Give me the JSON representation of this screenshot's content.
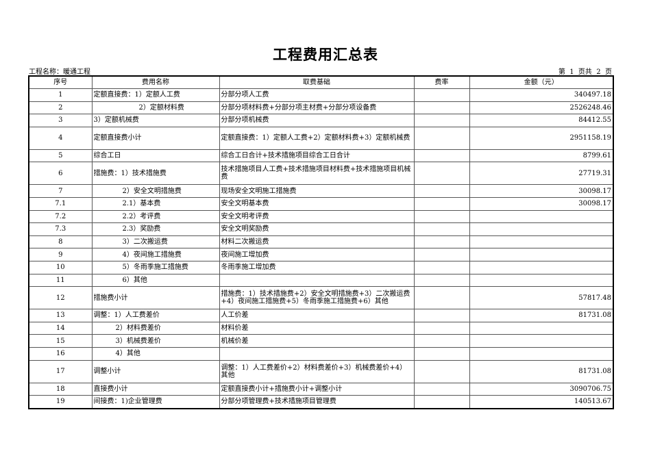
{
  "title": "工程费用汇总表",
  "project_label": "工程名称：暖通工程",
  "page_info": "第  1  页共  2  页",
  "headers": [
    "序号",
    "费用名称",
    "取费基础",
    "费率",
    "金额（元）"
  ],
  "rows": [
    {
      "no": "1",
      "name": "定额直接费：1）定额人工费",
      "basis": "分部分项人工费",
      "rate": "",
      "amount": "340497.18"
    },
    {
      "no": "2",
      "name": "2）定额材料费",
      "basis": "分部分项材料费+分部分项主材费+分部分项设备费",
      "rate": "",
      "amount": "2526248.46"
    },
    {
      "no": "3",
      "name": "3）定额机械费",
      "basis": "分部分项机械费",
      "rate": "",
      "amount": "84412.55"
    },
    {
      "no": "4",
      "name": "定额直接费小计",
      "basis": "定额直接费：1）定额人工费+2）定额材料费+3）定额机械费",
      "rate": "",
      "amount": "2951158.19"
    },
    {
      "no": "5",
      "name": "综合工日",
      "basis": "综合工日合计+技术措施项目综合工日合计",
      "rate": "",
      "amount": "8799.61"
    },
    {
      "no": "6",
      "name": "措施费：1）技术措施费",
      "basis": "技术措施项目人工费+技术措施项目材料费+技术措施项目机械费",
      "rate": "",
      "amount": "27719.31"
    },
    {
      "no": "7",
      "name": "2）安全文明措施费",
      "basis": "现场安全文明施工措施费",
      "rate": "",
      "amount": "30098.17"
    },
    {
      "no": "7.1",
      "name": "2.1）基本费",
      "basis": "安全文明基本费",
      "rate": "",
      "amount": "30098.17"
    },
    {
      "no": "7.2",
      "name": "2.2）考评费",
      "basis": "安全文明考评费",
      "rate": "",
      "amount": ""
    },
    {
      "no": "7.3",
      "name": "2.3）奖励费",
      "basis": "安全文明奖励费",
      "rate": "",
      "amount": ""
    },
    {
      "no": "8",
      "name": "3）二次搬运费",
      "basis": "材料二次搬运费",
      "rate": "",
      "amount": ""
    },
    {
      "no": "9",
      "name": "4）夜间施工措施费",
      "basis": "夜间施工增加费",
      "rate": "",
      "amount": ""
    },
    {
      "no": "10",
      "name": "5）冬雨季施工措施费",
      "basis": "冬雨季施工增加费",
      "rate": "",
      "amount": ""
    },
    {
      "no": "11",
      "name": "6）其他",
      "basis": "",
      "rate": "",
      "amount": ""
    },
    {
      "no": "12",
      "name": "措施费小计",
      "basis": "措施费：1）技术措施费+2）安全文明措施费+3）二次搬运费+4）夜间施工措施费+5）冬雨季施工措施费+6）其他",
      "rate": "",
      "amount": "57817.48"
    },
    {
      "no": "13",
      "name": "调整：1）人工费差价",
      "basis": "人工价差",
      "rate": "",
      "amount": "81731.08"
    },
    {
      "no": "14",
      "name": "2）材料费差价",
      "basis": "材料价差",
      "rate": "",
      "amount": ""
    },
    {
      "no": "15",
      "name": "3）机械费差价",
      "basis": "机械价差",
      "rate": "",
      "amount": ""
    },
    {
      "no": "16",
      "name": "4）其他",
      "basis": "",
      "rate": "",
      "amount": ""
    },
    {
      "no": "17",
      "name": "调整小计",
      "basis": "调整：1）人工费差价+2）材料费差价+3）机械费差价+4）其他",
      "rate": "",
      "amount": "81731.08"
    },
    {
      "no": "18",
      "name": "直接费小计",
      "basis": "定额直接费小计+措施费小计+调整小计",
      "rate": "",
      "amount": "3090706.75"
    },
    {
      "no": "19",
      "name": "间接费：1)企业管理费",
      "basis": "分部分项管理费+技术措施项目管理费",
      "rate": "",
      "amount": "140513.67"
    }
  ]
}
